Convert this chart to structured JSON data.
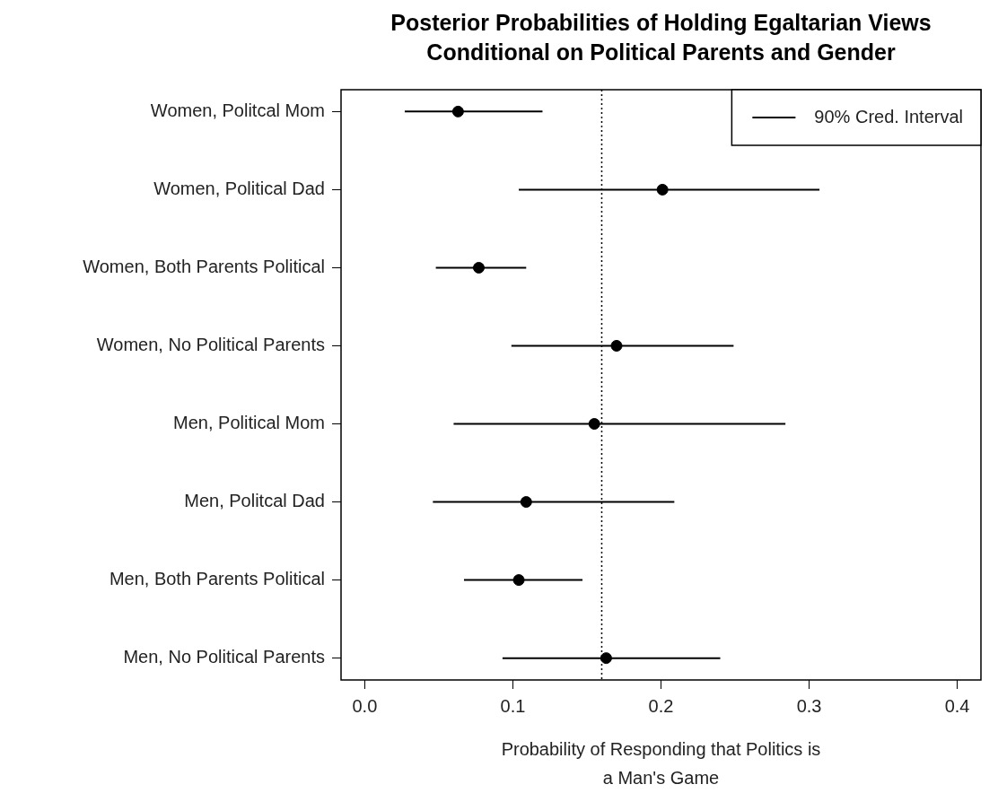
{
  "chart_data": {
    "type": "scatter",
    "orientation": "horizontal",
    "title": "Posterior Probabilities of Holding Egaltarian Views\nConditional on Political Parents and Gender",
    "xlabel": "Probability of Responding that Politics is\na Man's Game",
    "categories": [
      "Women, Politcal Mom",
      "Women, Political Dad",
      "Women, Both Parents Political",
      "Women, No Political Parents",
      "Men, Political Mom",
      "Men, Politcal Dad",
      "Men, Both Parents Political",
      "Men, No Political Parents"
    ],
    "series": [
      {
        "name": "90% Cred. Interval",
        "color": "#000000",
        "values": [
          0.063,
          0.201,
          0.077,
          0.17,
          0.155,
          0.109,
          0.104,
          0.163
        ],
        "errors": [
          [
            0.027,
            0.12
          ],
          [
            0.104,
            0.307
          ],
          [
            0.048,
            0.109
          ],
          [
            0.099,
            0.249
          ],
          [
            0.06,
            0.284
          ],
          [
            0.046,
            0.209
          ],
          [
            0.067,
            0.147
          ],
          [
            0.093,
            0.24
          ]
        ]
      }
    ],
    "xlim": [
      -0.016,
      0.416
    ],
    "xticks": [
      {
        "value": 0,
        "label": "0.0"
      },
      {
        "value": 0.1,
        "label": "0.1"
      },
      {
        "value": 0.2,
        "label": "0.2"
      },
      {
        "value": 0.3,
        "label": "0.3"
      },
      {
        "value": 0.4,
        "label": "0.4"
      }
    ],
    "ref_lines": [
      {
        "axis": "x",
        "value": 0.16,
        "line_style": "dotted",
        "color": "#000000"
      }
    ],
    "legend": "top right",
    "marker": "circle",
    "grid": false
  }
}
